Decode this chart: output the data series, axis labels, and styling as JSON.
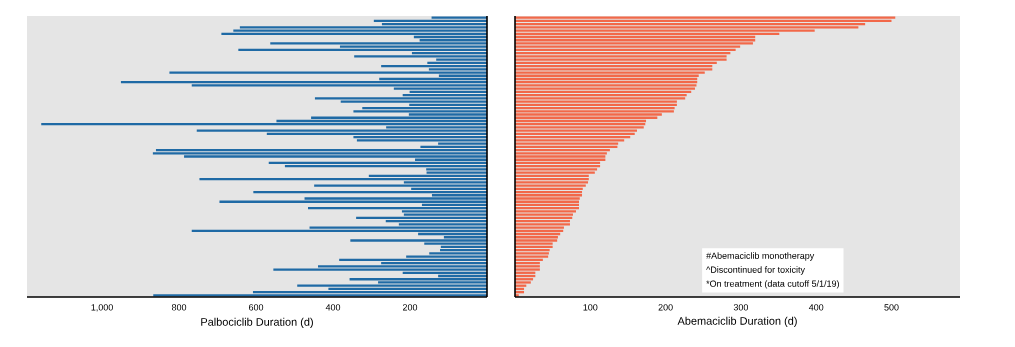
{
  "chart_data": [
    {
      "type": "bar",
      "orientation": "horizontal",
      "xlabel": "Palbociclib Duration (d)",
      "color": "#1f6aa5",
      "xlim": [
        1195,
        0
      ],
      "xticks": [
        {
          "value": 1000,
          "label": "1,000"
        },
        800,
        600,
        400,
        200
      ],
      "categories": [
        null,
        null,
        null,
        null,
        null,
        null,
        null,
        null,
        null,
        null,
        null,
        null,
        null,
        null,
        null,
        null,
        null,
        null,
        null,
        null,
        null,
        null,
        null,
        null,
        null,
        null,
        null,
        null,
        null,
        null,
        null,
        null,
        null,
        null,
        null,
        null,
        null,
        null,
        null,
        null,
        null,
        null,
        null,
        null,
        null,
        null,
        null,
        null,
        null,
        null,
        null,
        null,
        null,
        null,
        null,
        null,
        null,
        null,
        null,
        null,
        null,
        null,
        null,
        null,
        null,
        null,
        null,
        null,
        null,
        null,
        null,
        null,
        null,
        null,
        null,
        null,
        null,
        null,
        null,
        null,
        null,
        null,
        null,
        null,
        null,
        null,
        null
      ],
      "values": [
        144,
        294,
        273,
        642,
        659,
        690,
        190,
        175,
        563,
        382,
        646,
        195,
        345,
        132,
        155,
        275,
        151,
        825,
        125,
        280,
        951,
        767,
        242,
        201,
        219,
        447,
        380,
        202,
        324,
        347,
        203,
        457,
        547,
        1158,
        262,
        754,
        572,
        347,
        338,
        127,
        173,
        860,
        868,
        787,
        187,
        567,
        525,
        158,
        157,
        307,
        747,
        216,
        449,
        197,
        607,
        143,
        474,
        695,
        169,
        465,
        221,
        216,
        340,
        263,
        229,
        461,
        767,
        179,
        112,
        355,
        163,
        120,
        122,
        150,
        210,
        384,
        275,
        439,
        555,
        219,
        127,
        357,
        283,
        493,
        412,
        608,
        867
      ]
    },
    {
      "type": "bar",
      "orientation": "horizontal",
      "xlabel": "Abemaciclib Duration (d)",
      "color": "#f26849",
      "xlim": [
        0,
        591
      ],
      "xticks": [
        100,
        200,
        300,
        400,
        500
      ],
      "annotations": [
        "#Abemaciclib monotherapy",
        "^Discontinued for toxicity",
        "*On treatment (data cutoff 5/1/19)"
      ],
      "categories": [
        null,
        null,
        null,
        null,
        null,
        null,
        null,
        null,
        null,
        null,
        null,
        null,
        null,
        null,
        null,
        null,
        null,
        null,
        null,
        null,
        null,
        null,
        null,
        null,
        null,
        null,
        null,
        null,
        null,
        null,
        null,
        null,
        null,
        null,
        null,
        null,
        null,
        null,
        null,
        null,
        null,
        null,
        null,
        null,
        null,
        null,
        null,
        null,
        null,
        null,
        null,
        null,
        null,
        null,
        null,
        null,
        null,
        null,
        null,
        null,
        null,
        null,
        null,
        null,
        null,
        null,
        null,
        null,
        null,
        null,
        null,
        null,
        null,
        null,
        null,
        null,
        null,
        null,
        null,
        null,
        null,
        null,
        null,
        null,
        null,
        null,
        null
      ],
      "values": [
        505,
        500,
        465,
        456,
        398,
        351,
        319,
        319,
        316,
        299,
        293,
        286,
        281,
        281,
        268,
        262,
        262,
        252,
        244,
        242,
        242,
        241,
        239,
        234,
        228,
        226,
        215,
        215,
        212,
        211,
        195,
        189,
        174,
        173,
        171,
        162,
        159,
        153,
        145,
        137,
        136,
        126,
        122,
        120,
        120,
        113,
        113,
        109,
        106,
        98,
        98,
        97,
        94,
        90,
        89,
        89,
        86,
        85,
        85,
        85,
        81,
        77,
        76,
        73,
        73,
        65,
        64,
        60,
        57,
        56,
        50,
        50,
        46,
        45,
        44,
        37,
        33,
        33,
        33,
        27,
        27,
        24,
        21,
        15,
        12,
        12,
        5
      ]
    }
  ]
}
